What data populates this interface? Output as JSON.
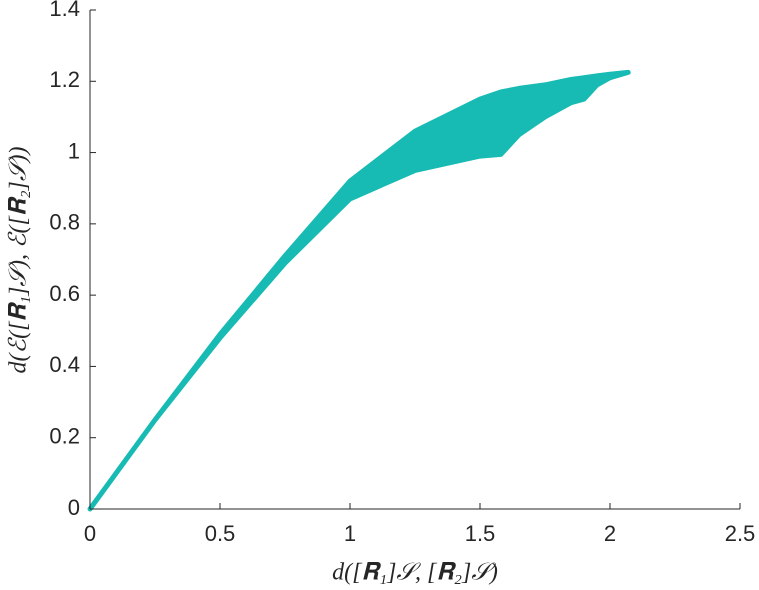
{
  "chart_data": {
    "type": "band",
    "xlabel": "d([𝐑₁]𝒮, [𝐑₂]𝒮)",
    "ylabel": "d(ℰ([𝐑₁]𝒮), ℰ([𝐑₂]𝒮))",
    "x": [
      0,
      0.25,
      0.5,
      0.75,
      1,
      1.25,
      1.5,
      1.58,
      1.65,
      1.75,
      1.85,
      1.9,
      1.95,
      2,
      2.07
    ],
    "upper": [
      0,
      0.25,
      0.49,
      0.71,
      0.92,
      1.06,
      1.15,
      1.17,
      1.18,
      1.19,
      1.205,
      1.21,
      1.215,
      1.22,
      1.225
    ],
    "lower": [
      0,
      0.25,
      0.48,
      0.69,
      0.87,
      0.95,
      0.99,
      0.995,
      1.05,
      1.1,
      1.14,
      1.15,
      1.19,
      1.21,
      1.225
    ],
    "color": "#17bbb3",
    "xlim": [
      0,
      2.5
    ],
    "xticks": [
      0,
      0.5,
      1,
      1.5,
      2,
      2.5
    ],
    "ylim": [
      0,
      1.4
    ],
    "yticks": [
      0,
      0.2,
      0.4,
      0.6,
      0.8,
      1,
      1.2,
      1.4
    ]
  }
}
